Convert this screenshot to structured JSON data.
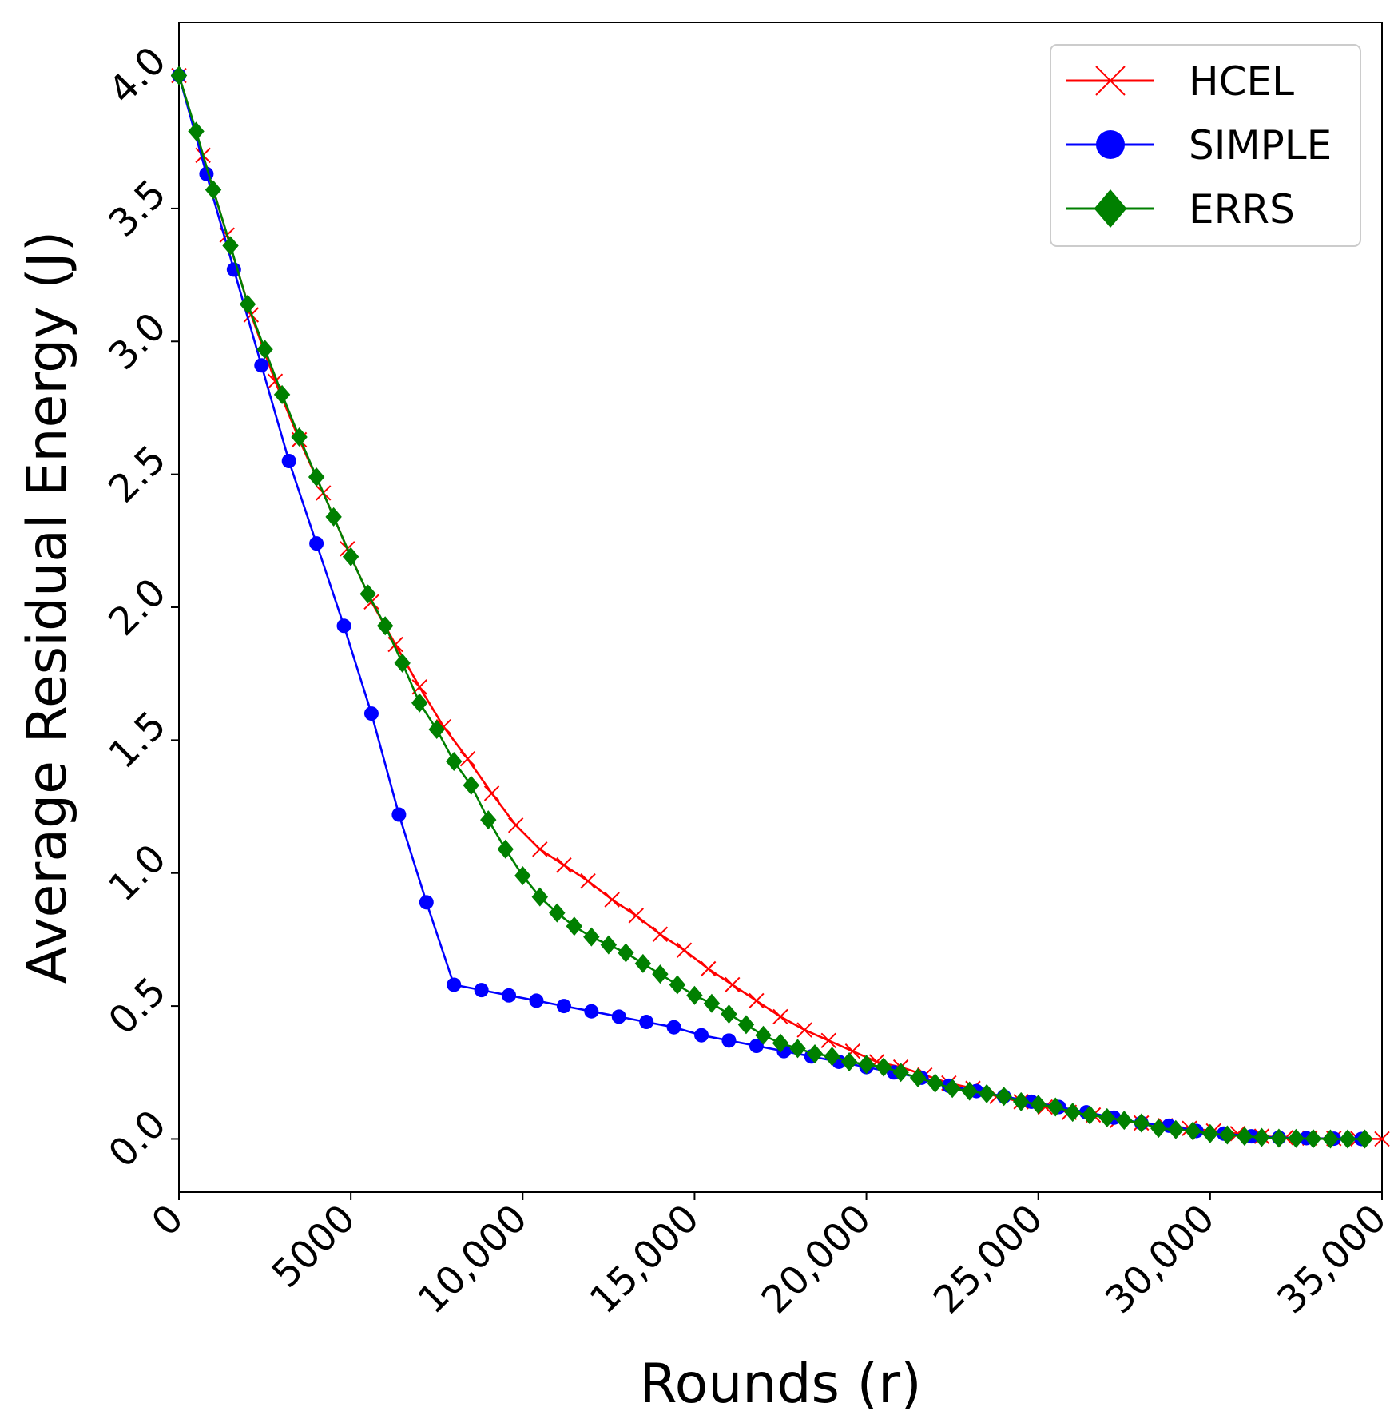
{
  "chart_data": {
    "type": "line",
    "title": "",
    "xlabel": "Rounds (r)",
    "ylabel": "Average Residual Energy (J)",
    "xlim": [
      0,
      35000
    ],
    "ylim": [
      -0.2,
      4.2
    ],
    "x_ticks": [
      0,
      5000,
      10000,
      15000,
      20000,
      25000,
      30000,
      35000
    ],
    "x_tick_labels": [
      "0",
      "5000",
      "10,000",
      "15,000",
      "20,000",
      "25,000",
      "30,000",
      "35,000"
    ],
    "y_ticks": [
      0.0,
      0.5,
      1.0,
      1.5,
      2.0,
      2.5,
      3.0,
      3.5,
      4.0
    ],
    "y_tick_labels": [
      "0.0",
      "0.5",
      "1.0",
      "1.5",
      "2.0",
      "2.5",
      "3.0",
      "3.5",
      "4.0"
    ],
    "grid": false,
    "legend_position": "top-right",
    "series": [
      {
        "name": "HCEL",
        "color": "#ff0000",
        "marker": "x",
        "points": [
          [
            0,
            4.0
          ],
          [
            700,
            3.7
          ],
          [
            1400,
            3.4
          ],
          [
            2100,
            3.1
          ],
          [
            2800,
            2.85
          ],
          [
            3500,
            2.63
          ],
          [
            4200,
            2.43
          ],
          [
            4900,
            2.22
          ],
          [
            5600,
            2.02
          ],
          [
            6300,
            1.86
          ],
          [
            7000,
            1.7
          ],
          [
            7700,
            1.55
          ],
          [
            8400,
            1.43
          ],
          [
            9100,
            1.3
          ],
          [
            9800,
            1.18
          ],
          [
            10500,
            1.09
          ],
          [
            11200,
            1.03
          ],
          [
            11900,
            0.97
          ],
          [
            12600,
            0.9
          ],
          [
            13300,
            0.84
          ],
          [
            14000,
            0.77
          ],
          [
            14700,
            0.71
          ],
          [
            15400,
            0.64
          ],
          [
            16100,
            0.58
          ],
          [
            16800,
            0.52
          ],
          [
            17500,
            0.46
          ],
          [
            18200,
            0.41
          ],
          [
            18900,
            0.37
          ],
          [
            19600,
            0.33
          ],
          [
            20300,
            0.29
          ],
          [
            21000,
            0.27
          ],
          [
            21700,
            0.24
          ],
          [
            22400,
            0.21
          ],
          [
            23100,
            0.19
          ],
          [
            23800,
            0.16
          ],
          [
            24500,
            0.14
          ],
          [
            25200,
            0.12
          ],
          [
            25900,
            0.1
          ],
          [
            26600,
            0.09
          ],
          [
            27300,
            0.07
          ],
          [
            28000,
            0.06
          ],
          [
            28700,
            0.05
          ],
          [
            29400,
            0.04
          ],
          [
            30100,
            0.03
          ],
          [
            30800,
            0.02
          ],
          [
            31500,
            0.01
          ],
          [
            32200,
            0.005
          ],
          [
            32900,
            0.003
          ],
          [
            33600,
            0.002
          ],
          [
            34300,
            0.001
          ],
          [
            35000,
            0.0
          ]
        ]
      },
      {
        "name": "SIMPLE",
        "color": "#0000ff",
        "marker": "circle",
        "points": [
          [
            0,
            4.0
          ],
          [
            800,
            3.63
          ],
          [
            1600,
            3.27
          ],
          [
            2400,
            2.91
          ],
          [
            3200,
            2.55
          ],
          [
            4000,
            2.24
          ],
          [
            4800,
            1.93
          ],
          [
            5600,
            1.6
          ],
          [
            6400,
            1.22
          ],
          [
            7200,
            0.89
          ],
          [
            8000,
            0.58
          ],
          [
            8800,
            0.56
          ],
          [
            9600,
            0.54
          ],
          [
            10400,
            0.52
          ],
          [
            11200,
            0.5
          ],
          [
            12000,
            0.48
          ],
          [
            12800,
            0.46
          ],
          [
            13600,
            0.44
          ],
          [
            14400,
            0.42
          ],
          [
            15200,
            0.39
          ],
          [
            16000,
            0.37
          ],
          [
            16800,
            0.35
          ],
          [
            17600,
            0.33
          ],
          [
            18400,
            0.31
          ],
          [
            19200,
            0.29
          ],
          [
            20000,
            0.27
          ],
          [
            20800,
            0.25
          ],
          [
            21600,
            0.23
          ],
          [
            22400,
            0.2
          ],
          [
            23200,
            0.18
          ],
          [
            24000,
            0.16
          ],
          [
            24800,
            0.14
          ],
          [
            25600,
            0.12
          ],
          [
            26400,
            0.1
          ],
          [
            27200,
            0.08
          ],
          [
            28000,
            0.06
          ],
          [
            28800,
            0.05
          ],
          [
            29600,
            0.03
          ],
          [
            30400,
            0.02
          ],
          [
            31200,
            0.01
          ],
          [
            32000,
            0.005
          ],
          [
            32800,
            0.003
          ],
          [
            33600,
            0.001
          ],
          [
            34400,
            0.0
          ]
        ]
      },
      {
        "name": "ERRS",
        "color": "#008000",
        "marker": "diamond",
        "points": [
          [
            0,
            4.0
          ],
          [
            500,
            3.79
          ],
          [
            1000,
            3.57
          ],
          [
            1500,
            3.36
          ],
          [
            2000,
            3.14
          ],
          [
            2500,
            2.97
          ],
          [
            3000,
            2.8
          ],
          [
            3500,
            2.64
          ],
          [
            4000,
            2.49
          ],
          [
            4500,
            2.34
          ],
          [
            5000,
            2.19
          ],
          [
            5500,
            2.05
          ],
          [
            6000,
            1.93
          ],
          [
            6500,
            1.79
          ],
          [
            7000,
            1.64
          ],
          [
            7500,
            1.54
          ],
          [
            8000,
            1.42
          ],
          [
            8500,
            1.33
          ],
          [
            9000,
            1.2
          ],
          [
            9500,
            1.09
          ],
          [
            10000,
            0.99
          ],
          [
            10500,
            0.91
          ],
          [
            11000,
            0.85
          ],
          [
            11500,
            0.8
          ],
          [
            12000,
            0.76
          ],
          [
            12500,
            0.73
          ],
          [
            13000,
            0.7
          ],
          [
            13500,
            0.66
          ],
          [
            14000,
            0.62
          ],
          [
            14500,
            0.58
          ],
          [
            15000,
            0.54
          ],
          [
            15500,
            0.51
          ],
          [
            16000,
            0.47
          ],
          [
            16500,
            0.43
          ],
          [
            17000,
            0.39
          ],
          [
            17500,
            0.36
          ],
          [
            18000,
            0.34
          ],
          [
            18500,
            0.32
          ],
          [
            19000,
            0.31
          ],
          [
            19500,
            0.29
          ],
          [
            20000,
            0.28
          ],
          [
            20500,
            0.27
          ],
          [
            21000,
            0.25
          ],
          [
            21500,
            0.23
          ],
          [
            22000,
            0.21
          ],
          [
            22500,
            0.19
          ],
          [
            23000,
            0.18
          ],
          [
            23500,
            0.17
          ],
          [
            24000,
            0.16
          ],
          [
            24500,
            0.14
          ],
          [
            25000,
            0.13
          ],
          [
            25500,
            0.12
          ],
          [
            26000,
            0.1
          ],
          [
            26500,
            0.09
          ],
          [
            27000,
            0.08
          ],
          [
            27500,
            0.07
          ],
          [
            28000,
            0.06
          ],
          [
            28500,
            0.04
          ],
          [
            29000,
            0.035
          ],
          [
            29500,
            0.03
          ],
          [
            30000,
            0.02
          ],
          [
            30500,
            0.015
          ],
          [
            31000,
            0.01
          ],
          [
            31500,
            0.006
          ],
          [
            32000,
            0.003
          ],
          [
            32500,
            0.002
          ],
          [
            33000,
            0.001
          ],
          [
            33500,
            0.0
          ],
          [
            34000,
            0.0
          ],
          [
            34500,
            0.0
          ]
        ]
      }
    ]
  }
}
